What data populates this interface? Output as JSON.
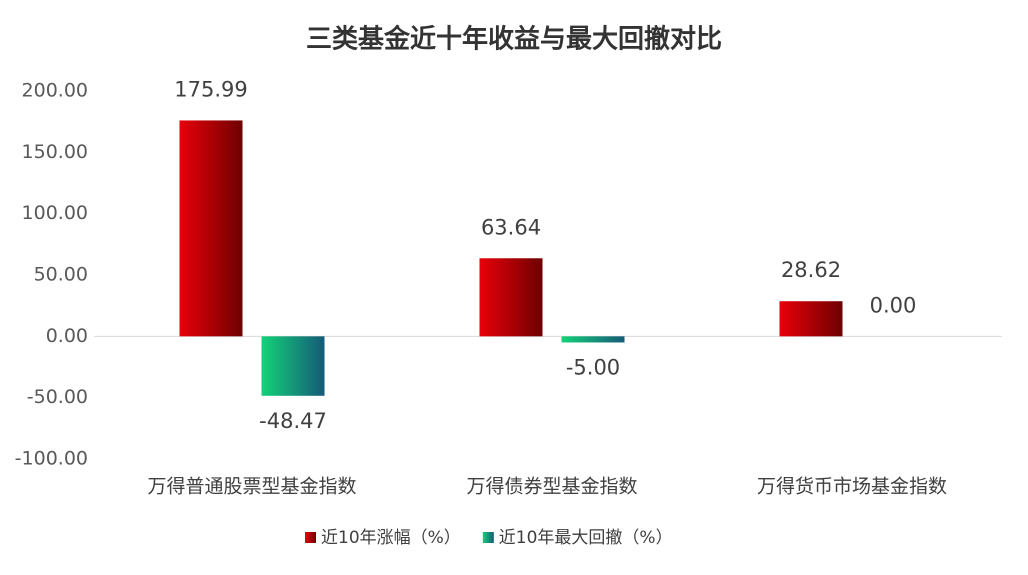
{
  "chart_data": {
    "type": "bar",
    "title": "三类基金近十年收益与最大回撤对比",
    "categories": [
      "万得普通股票型基金指数",
      "万得债券型基金指数",
      "万得货币市场基金指数"
    ],
    "series": [
      {
        "name": "近10年涨幅（%）",
        "color": [
          "#e8000a",
          "#6e0000"
        ],
        "values": [
          175.99,
          63.64,
          28.62
        ],
        "value_labels": [
          "175.99",
          "63.64",
          "28.62"
        ]
      },
      {
        "name": "近10年最大回撤（%）",
        "color": [
          "#14d278",
          "#155a78"
        ],
        "values": [
          -48.47,
          -5,
          0
        ],
        "value_labels": [
          "-48.47",
          "-5.00",
          "0.00"
        ]
      }
    ],
    "ylim": [
      -100,
      200
    ],
    "yticks": [
      {
        "value": -100,
        "label": "-100.00"
      },
      {
        "value": -50,
        "label": "-50.00"
      },
      {
        "value": 0,
        "label": "0.00"
      },
      {
        "value": 50,
        "label": "50.00"
      },
      {
        "value": 100,
        "label": "100.00"
      },
      {
        "value": 150,
        "label": "150.00"
      },
      {
        "value": 200,
        "label": "200.00"
      }
    ],
    "grid": false,
    "legend": "bottom"
  }
}
